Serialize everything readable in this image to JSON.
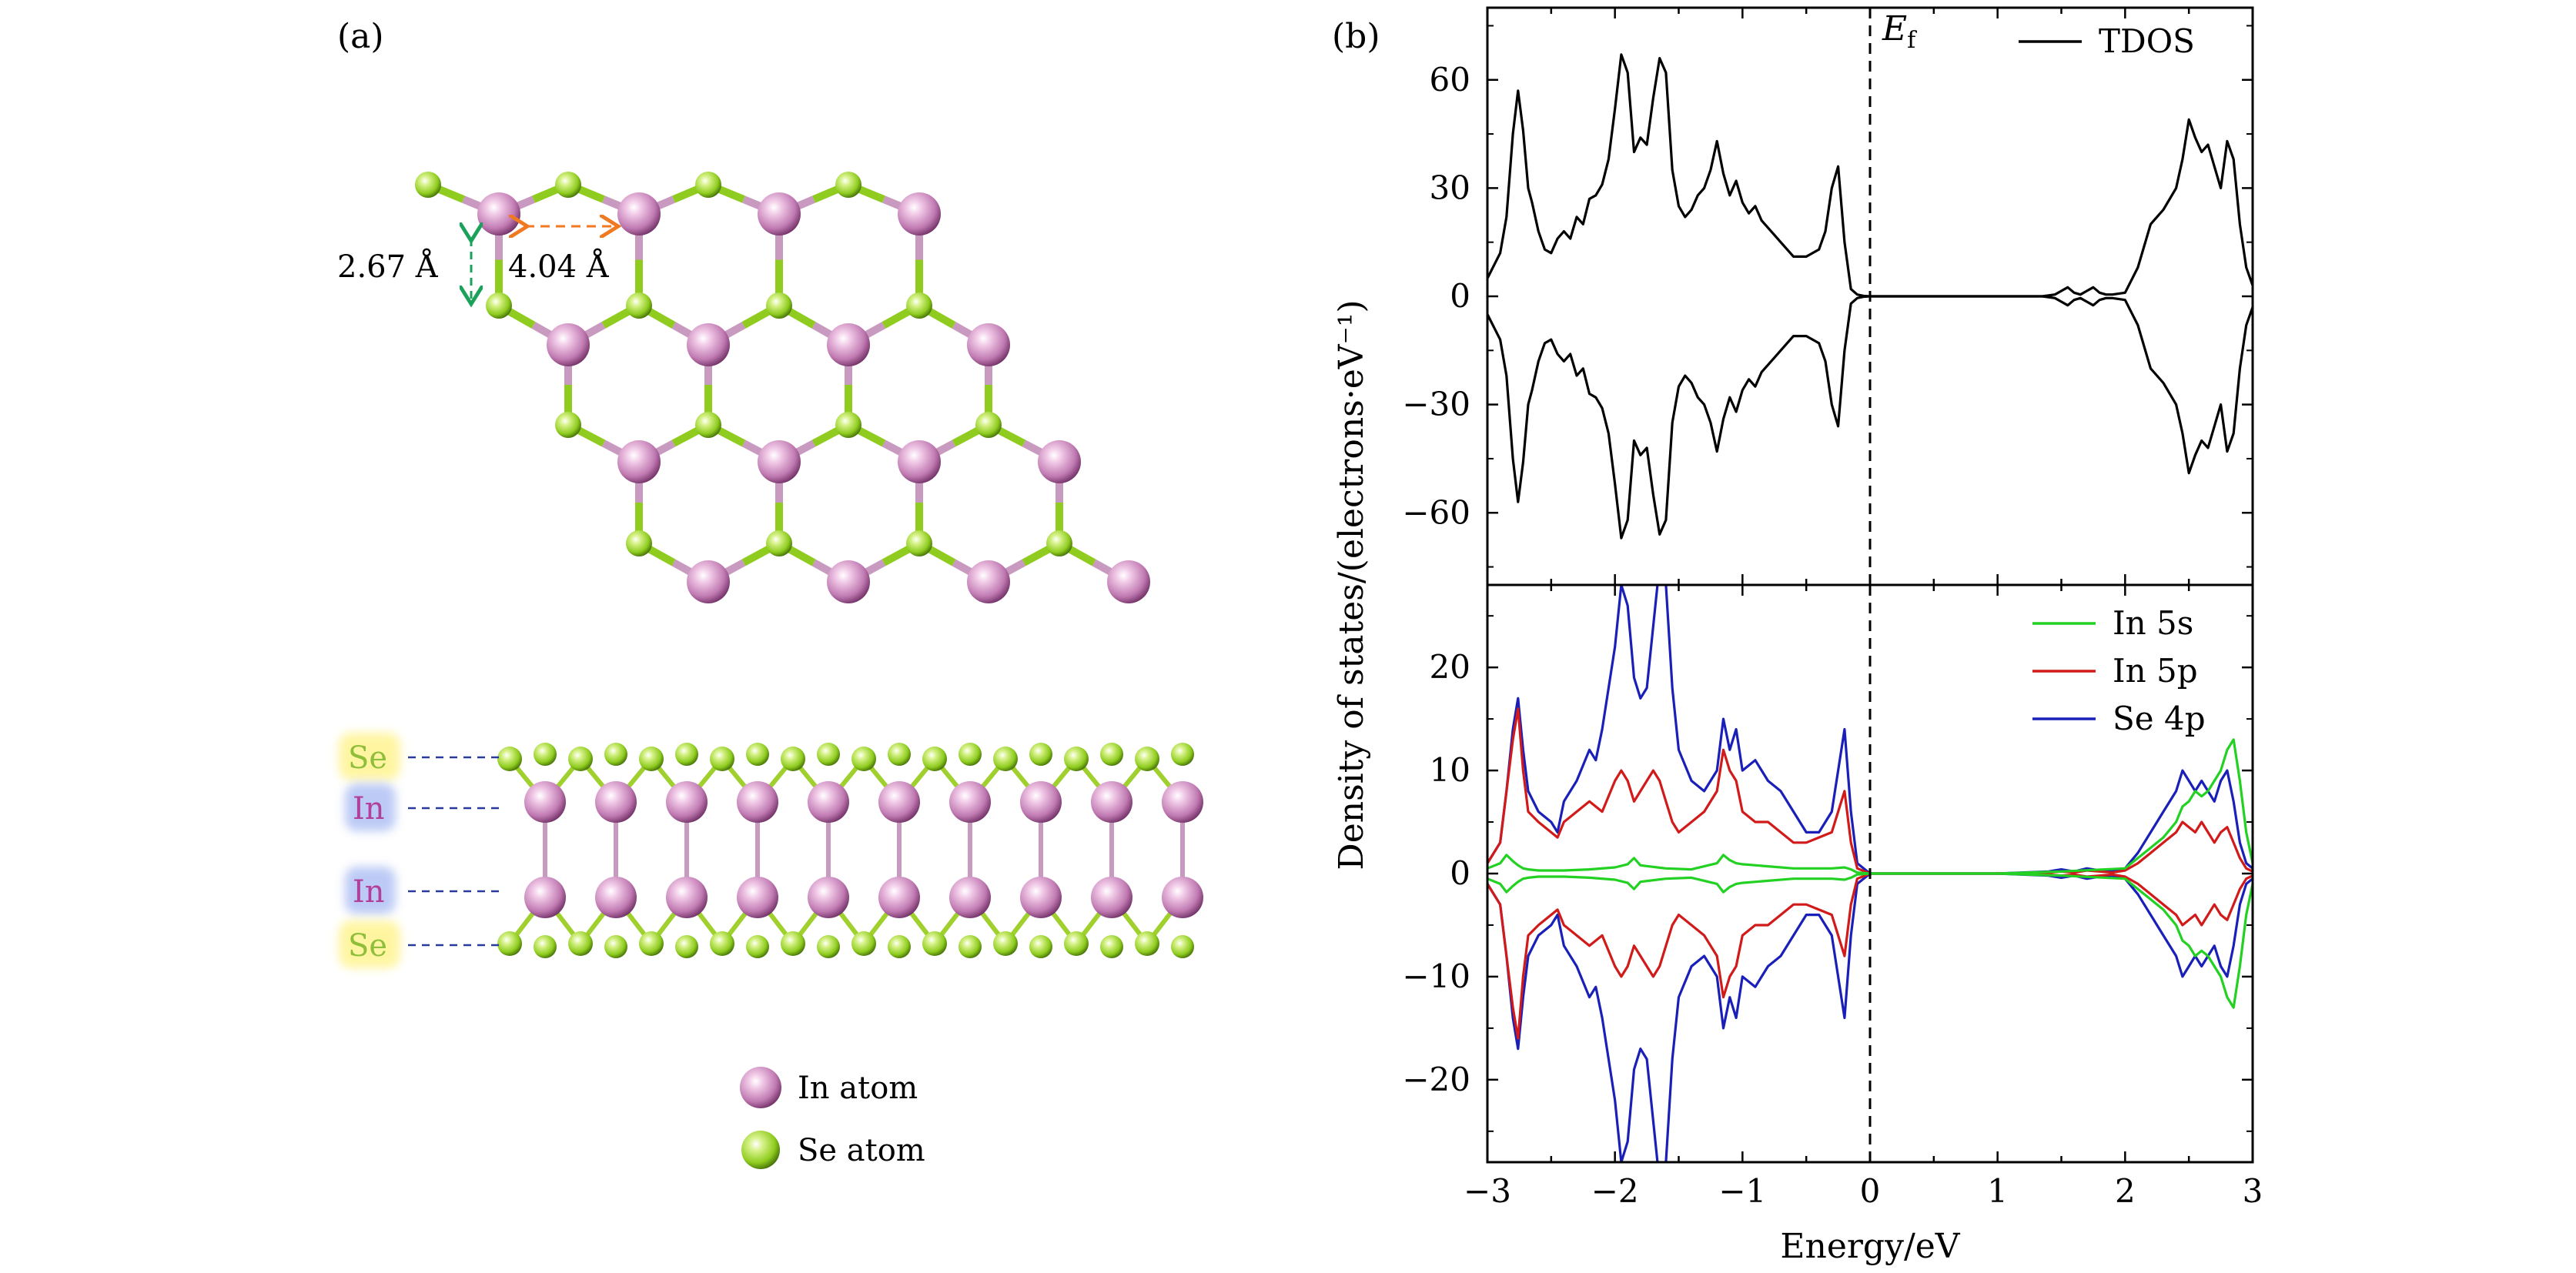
{
  "figure": {
    "panel_a_label": "(a)",
    "panel_b_label": "(b)"
  },
  "structure": {
    "dim_vertical": "2.67 Å",
    "dim_horizontal": "4.04 Å",
    "layers": [
      "Se",
      "In",
      "In",
      "Se"
    ],
    "legend": {
      "in_atom": "In atom",
      "se_atom": "Se atom"
    },
    "colors": {
      "in": "#c77fb8",
      "se": "#8fcc1f",
      "se_label_bg": "#fff59d",
      "in_label_bg": "#b9c8f5",
      "se_label_text": "#8fbf3a",
      "in_label_text": "#b0409a",
      "dim_v_arrow": "#1aa15a",
      "dim_h_arrow": "#f07a22"
    }
  },
  "chart_data": [
    {
      "type": "line",
      "title": "",
      "xlabel": "Energy/eV",
      "ylabel": "Density of states/(electrons·eV⁻¹)",
      "xlim": [
        -3,
        3
      ],
      "ylim": [
        -80,
        80
      ],
      "yticks": [
        60,
        30,
        0,
        -30,
        -60
      ],
      "ytick_labels": [
        "60",
        "30",
        "0",
        "−30",
        "−60"
      ],
      "fermi_level": 0,
      "fermi_label": "E",
      "fermi_sub": "f",
      "series": [
        {
          "name": "TDOS",
          "color": "#000000",
          "x": [
            -3.0,
            -2.9,
            -2.85,
            -2.8,
            -2.76,
            -2.72,
            -2.68,
            -2.65,
            -2.6,
            -2.55,
            -2.5,
            -2.45,
            -2.4,
            -2.35,
            -2.3,
            -2.25,
            -2.2,
            -2.15,
            -2.1,
            -2.05,
            -2.0,
            -1.95,
            -1.9,
            -1.85,
            -1.8,
            -1.75,
            -1.7,
            -1.65,
            -1.6,
            -1.55,
            -1.5,
            -1.45,
            -1.4,
            -1.35,
            -1.3,
            -1.25,
            -1.2,
            -1.15,
            -1.1,
            -1.05,
            -1.0,
            -0.95,
            -0.9,
            -0.85,
            -0.8,
            -0.75,
            -0.7,
            -0.6,
            -0.5,
            -0.4,
            -0.35,
            -0.3,
            -0.25,
            -0.2,
            -0.15,
            -0.1,
            -0.05,
            0.0,
            0.5,
            1.0,
            1.35,
            1.45,
            1.5,
            1.55,
            1.6,
            1.65,
            1.7,
            1.75,
            1.8,
            1.85,
            1.9,
            2.0,
            2.1,
            2.2,
            2.3,
            2.4,
            2.45,
            2.5,
            2.55,
            2.6,
            2.65,
            2.7,
            2.75,
            2.8,
            2.85,
            2.9,
            2.95,
            3.0
          ],
          "values": [
            5,
            12,
            22,
            45,
            57,
            46,
            30,
            26,
            18,
            13,
            12,
            16,
            18,
            16,
            22,
            20,
            27,
            28,
            31,
            38,
            52,
            67,
            62,
            40,
            44,
            42,
            55,
            66,
            62,
            35,
            25,
            22,
            24,
            28,
            30,
            35,
            43,
            34,
            28,
            32,
            26,
            23,
            25,
            21,
            19,
            17,
            15,
            11,
            11,
            13,
            18,
            30,
            36,
            15,
            2,
            0.5,
            0.1,
            0,
            0,
            0,
            0,
            0.5,
            1.5,
            2.5,
            1.0,
            0.5,
            1.5,
            2.5,
            1.0,
            0.5,
            0.5,
            1,
            8,
            20,
            24,
            30,
            38,
            49,
            44,
            40,
            42,
            36,
            30,
            43,
            38,
            20,
            8,
            3
          ],
          "mirror": true
        }
      ],
      "legend": [
        "TDOS"
      ]
    },
    {
      "type": "line",
      "title": "",
      "xlabel": "Energy/eV",
      "ylabel": "Density of states/(electrons·eV⁻¹)",
      "xlim": [
        -3,
        3
      ],
      "ylim": [
        -28,
        28
      ],
      "xticks": [
        -3,
        -2,
        -1,
        0,
        1,
        2,
        3
      ],
      "xtick_labels": [
        "−3",
        "−2",
        "−1",
        "0",
        "1",
        "2",
        "3"
      ],
      "yticks": [
        20,
        10,
        0,
        -10,
        -20
      ],
      "ytick_labels": [
        "20",
        "10",
        "0",
        "−10",
        "−20"
      ],
      "fermi_level": 0,
      "series": [
        {
          "name": "Se 4p",
          "color": "#1a1fb8",
          "x": [
            -3.0,
            -2.9,
            -2.85,
            -2.8,
            -2.76,
            -2.72,
            -2.68,
            -2.6,
            -2.5,
            -2.45,
            -2.4,
            -2.3,
            -2.2,
            -2.15,
            -2.1,
            -2.0,
            -1.95,
            -1.9,
            -1.85,
            -1.8,
            -1.75,
            -1.7,
            -1.65,
            -1.6,
            -1.55,
            -1.5,
            -1.4,
            -1.3,
            -1.2,
            -1.15,
            -1.1,
            -1.05,
            -1.0,
            -0.9,
            -0.8,
            -0.7,
            -0.6,
            -0.5,
            -0.4,
            -0.3,
            -0.25,
            -0.2,
            -0.15,
            -0.1,
            0.0,
            1.0,
            1.4,
            1.5,
            1.6,
            1.7,
            1.8,
            1.9,
            2.0,
            2.1,
            2.2,
            2.3,
            2.4,
            2.45,
            2.5,
            2.55,
            2.6,
            2.65,
            2.7,
            2.75,
            2.8,
            2.85,
            2.9,
            2.95,
            3.0
          ],
          "values": [
            1,
            3,
            8,
            14,
            17,
            12,
            8,
            6,
            5,
            4,
            7,
            9,
            12,
            11,
            14,
            22,
            28,
            26,
            19,
            17,
            18,
            24,
            30,
            28,
            18,
            12,
            9,
            8,
            10,
            15,
            12,
            14,
            10,
            11,
            9,
            8,
            6,
            4,
            4,
            6,
            10,
            14,
            6,
            1,
            0,
            0,
            0.2,
            0.4,
            0.2,
            0.5,
            0.3,
            0.2,
            0.5,
            2,
            4,
            6,
            8,
            10,
            9,
            8,
            9,
            8,
            7,
            9,
            10,
            7,
            3,
            1,
            0.5
          ],
          "mirror": true
        },
        {
          "name": "In 5p",
          "color": "#d11a1a",
          "x": [
            -3.0,
            -2.9,
            -2.85,
            -2.8,
            -2.76,
            -2.72,
            -2.68,
            -2.6,
            -2.5,
            -2.45,
            -2.4,
            -2.3,
            -2.2,
            -2.1,
            -2.0,
            -1.95,
            -1.9,
            -1.85,
            -1.8,
            -1.75,
            -1.7,
            -1.65,
            -1.6,
            -1.55,
            -1.5,
            -1.4,
            -1.3,
            -1.2,
            -1.15,
            -1.1,
            -1.05,
            -1.0,
            -0.9,
            -0.8,
            -0.7,
            -0.6,
            -0.5,
            -0.4,
            -0.3,
            -0.25,
            -0.2,
            -0.15,
            -0.1,
            0.0,
            1.0,
            1.4,
            1.5,
            1.6,
            1.7,
            1.8,
            1.9,
            2.0,
            2.1,
            2.2,
            2.3,
            2.4,
            2.45,
            2.5,
            2.55,
            2.6,
            2.65,
            2.7,
            2.75,
            2.8,
            2.85,
            2.9,
            2.95,
            3.0
          ],
          "values": [
            1,
            3,
            8,
            13,
            16,
            10,
            6,
            5,
            4,
            3.5,
            5,
            6,
            7,
            6,
            9,
            10,
            9,
            7,
            8,
            9,
            10,
            9,
            7,
            5,
            4,
            5,
            6,
            8,
            12,
            10,
            9,
            6,
            5,
            5,
            4,
            3,
            3,
            3.5,
            4,
            6,
            8,
            3,
            0.5,
            0,
            0,
            0.1,
            0.2,
            0.1,
            0.3,
            0.2,
            0.1,
            0.3,
            1,
            2,
            3,
            4,
            5,
            4.5,
            4,
            5,
            4,
            3,
            4,
            4.5,
            3,
            1.5,
            0.5,
            0.2
          ],
          "mirror": true
        },
        {
          "name": "In 5s",
          "color": "#22d122",
          "x": [
            -3.0,
            -2.9,
            -2.85,
            -2.8,
            -2.76,
            -2.72,
            -2.68,
            -2.6,
            -2.4,
            -2.2,
            -2.0,
            -1.9,
            -1.85,
            -1.8,
            -1.6,
            -1.4,
            -1.2,
            -1.15,
            -1.1,
            -1.05,
            -1.0,
            -0.8,
            -0.6,
            -0.4,
            -0.3,
            -0.2,
            -0.15,
            -0.1,
            0.0,
            1.0,
            1.5,
            2.0,
            2.1,
            2.2,
            2.3,
            2.4,
            2.45,
            2.5,
            2.55,
            2.6,
            2.65,
            2.7,
            2.75,
            2.8,
            2.85,
            2.9,
            2.95,
            3.0
          ],
          "values": [
            0.5,
            1,
            1.8,
            1.2,
            0.8,
            0.5,
            0.4,
            0.3,
            0.3,
            0.4,
            0.6,
            0.9,
            1.5,
            0.8,
            0.5,
            0.4,
            1.0,
            1.8,
            1.3,
            1.0,
            0.9,
            0.7,
            0.5,
            0.5,
            0.5,
            0.6,
            0.4,
            0.1,
            0,
            0,
            0.2,
            0.5,
            1.5,
            2.5,
            3.5,
            5,
            6.5,
            7,
            8,
            7.5,
            8,
            9,
            10,
            12,
            13,
            9,
            4,
            1
          ],
          "mirror": true
        }
      ],
      "legend": [
        "In 5s",
        "In 5p",
        "Se 4p"
      ]
    }
  ]
}
